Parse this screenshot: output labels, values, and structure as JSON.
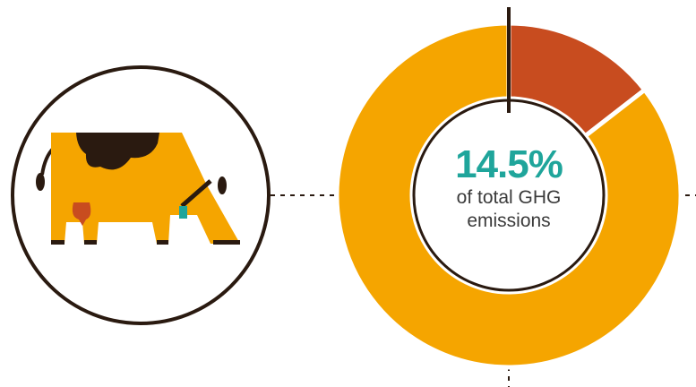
{
  "chart_data": {
    "type": "pie",
    "style": "donut",
    "slices": [
      {
        "value": 14.5,
        "color": "#c84c1f"
      },
      {
        "value": 85.5,
        "color": "#f5a500"
      }
    ],
    "center_value": "14.5%",
    "center_caption": "of total GHG\nemissions"
  },
  "colors": {
    "accent_teal": "#1fa59b",
    "slice_highlight": "#c84c1f",
    "slice_rest": "#f5a500",
    "cow_body": "#f5a500",
    "cow_spots": "#2a1a10",
    "udder": "#c84c1f",
    "outline": "#2a1a10"
  },
  "icons": [
    "cow-icon"
  ]
}
